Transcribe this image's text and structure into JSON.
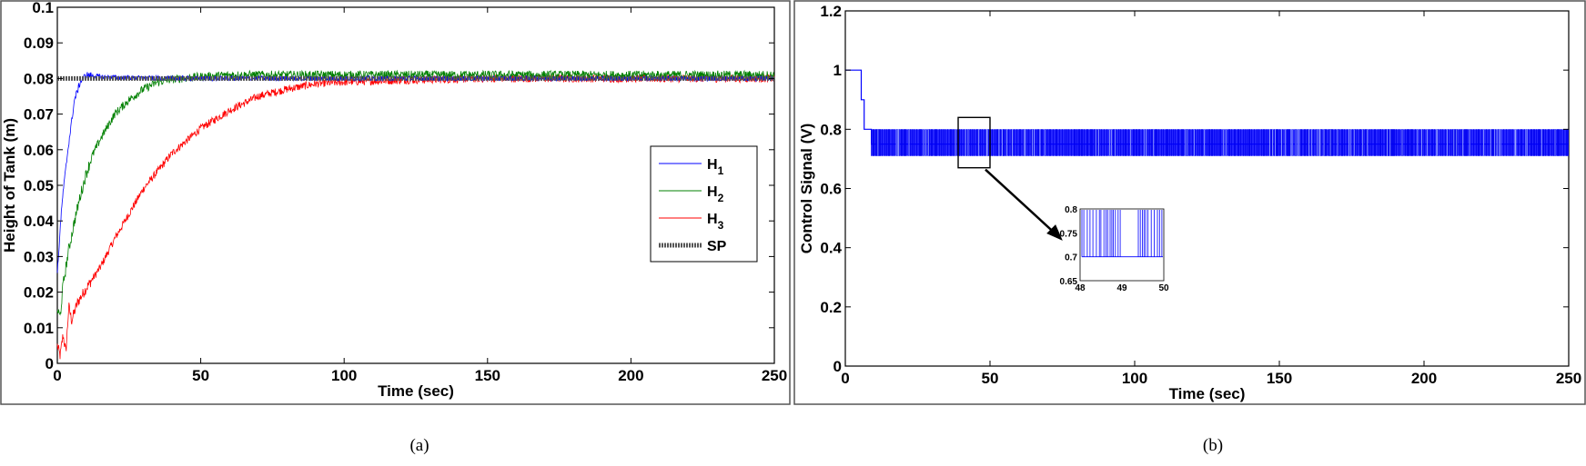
{
  "chart_data": [
    {
      "type": "line",
      "caption": "(a)",
      "xlabel": "Time (sec)",
      "ylabel": "Height of Tank (m)",
      "xlim": [
        0,
        250
      ],
      "ylim": [
        0,
        0.1
      ],
      "xticks": [
        "0",
        "50",
        "100",
        "150",
        "200",
        "250"
      ],
      "yticks": [
        "0",
        "0.01",
        "0.02",
        "0.03",
        "0.04",
        "0.05",
        "0.06",
        "0.07",
        "0.08",
        "0.09",
        "0.1"
      ],
      "grid": false,
      "legend_position": "right-center",
      "series": [
        {
          "name": "H",
          "subscript": "1",
          "color": "#0000ff",
          "x": [
            0,
            1,
            2,
            3,
            4,
            5,
            6,
            8,
            10,
            15,
            20,
            30,
            50,
            100,
            150,
            200,
            250
          ],
          "y": [
            0.025,
            0.038,
            0.048,
            0.055,
            0.062,
            0.068,
            0.074,
            0.079,
            0.081,
            0.0805,
            0.0803,
            0.0801,
            0.08,
            0.08,
            0.08,
            0.08,
            0.08
          ]
        },
        {
          "name": "H",
          "subscript": "2",
          "color": "#008000",
          "x": [
            0,
            1,
            2,
            4,
            6,
            8,
            10,
            12,
            15,
            20,
            25,
            30,
            35,
            40,
            50,
            60,
            80,
            100,
            150,
            200,
            250
          ],
          "y": [
            0.015,
            0.013,
            0.022,
            0.032,
            0.04,
            0.047,
            0.053,
            0.058,
            0.063,
            0.07,
            0.074,
            0.077,
            0.079,
            0.0798,
            0.0805,
            0.081,
            0.081,
            0.081,
            0.081,
            0.081,
            0.081
          ]
        },
        {
          "name": "H",
          "subscript": "3",
          "color": "#ff0000",
          "x": [
            0,
            1,
            2,
            3,
            4,
            5,
            7,
            10,
            15,
            20,
            25,
            30,
            40,
            50,
            60,
            70,
            80,
            90,
            100,
            120,
            150,
            200,
            250
          ],
          "y": [
            0.005,
            0.002,
            0.008,
            0.003,
            0.016,
            0.012,
            0.017,
            0.021,
            0.027,
            0.035,
            0.042,
            0.049,
            0.059,
            0.066,
            0.071,
            0.075,
            0.077,
            0.0785,
            0.079,
            0.0795,
            0.08,
            0.08,
            0.08
          ]
        },
        {
          "name": "SP",
          "color": "#555555",
          "x": [
            0,
            250
          ],
          "y": [
            0.08,
            0.08
          ]
        }
      ]
    },
    {
      "type": "line",
      "caption": "(b)",
      "xlabel": "Time (sec)",
      "ylabel": "Control Signal (V)",
      "xlim": [
        0,
        250
      ],
      "ylim": [
        0,
        1.2
      ],
      "xticks": [
        "0",
        "50",
        "100",
        "150",
        "200",
        "250"
      ],
      "yticks": [
        "0",
        "0.2",
        "0.4",
        "0.6",
        "0.8",
        "1",
        "1.2"
      ],
      "grid": false,
      "color": "#0000ff",
      "series": [
        {
          "x": [
            0,
            5.5,
            5.5,
            6.5,
            6.5,
            7,
            7,
            9,
            9,
            250
          ],
          "y": [
            1,
            1,
            0.9,
            0.9,
            0.8,
            0.8,
            0.8,
            0.8,
            0.75,
            0.75
          ]
        }
      ],
      "switching_band": {
        "x_start": 9,
        "x_end": 250,
        "low": 0.71,
        "high": 0.8
      },
      "zoom_box": {
        "x": [
          39,
          50
        ],
        "y": [
          0.67,
          0.84
        ]
      },
      "inset": {
        "xlim": [
          48,
          50
        ],
        "ylim": [
          0.65,
          0.8
        ],
        "xticks": [
          "48",
          "49",
          "50"
        ],
        "yticks": [
          "0.65",
          "0.7",
          "0.75",
          "0.8"
        ],
        "low": 0.7,
        "high": 0.8
      }
    }
  ]
}
